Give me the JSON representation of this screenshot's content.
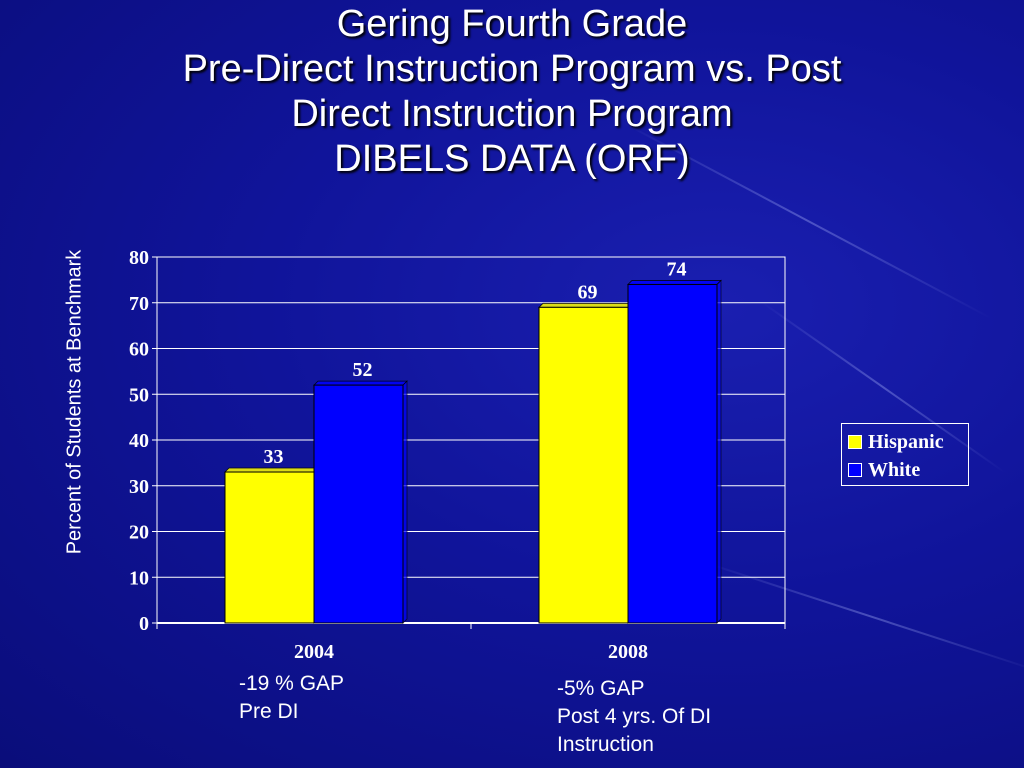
{
  "title_lines": [
    "Gering Fourth Grade",
    "Pre-Direct Instruction Program vs. Post",
    "Direct Instruction Program",
    "DIBELS DATA (ORF)"
  ],
  "colors": {
    "hispanic": "#ffff00",
    "white": "#0000ff",
    "gridline": "#ffffff",
    "background": "#10149a"
  },
  "chart_data": {
    "type": "bar",
    "title": "Gering Fourth Grade Pre-Direct Instruction Program vs. Post Direct Instruction Program DIBELS DATA (ORF)",
    "xlabel": "",
    "ylabel": "Percent of Students at Benchmark",
    "categories": [
      "2004",
      "2008"
    ],
    "series": [
      {
        "name": "Hispanic",
        "values": [
          33,
          69
        ]
      },
      {
        "name": "White",
        "values": [
          52,
          74
        ]
      }
    ],
    "ylim": [
      0,
      80
    ],
    "yticks": [
      0,
      10,
      20,
      30,
      40,
      50,
      60,
      70,
      80
    ],
    "grid": true,
    "legend_position": "right"
  },
  "annotations": [
    {
      "lines": [
        "-19 % GAP",
        "Pre DI"
      ]
    },
    {
      "lines": [
        "-5% GAP",
        "Post 4 yrs. Of DI",
        "Instruction"
      ]
    }
  ]
}
